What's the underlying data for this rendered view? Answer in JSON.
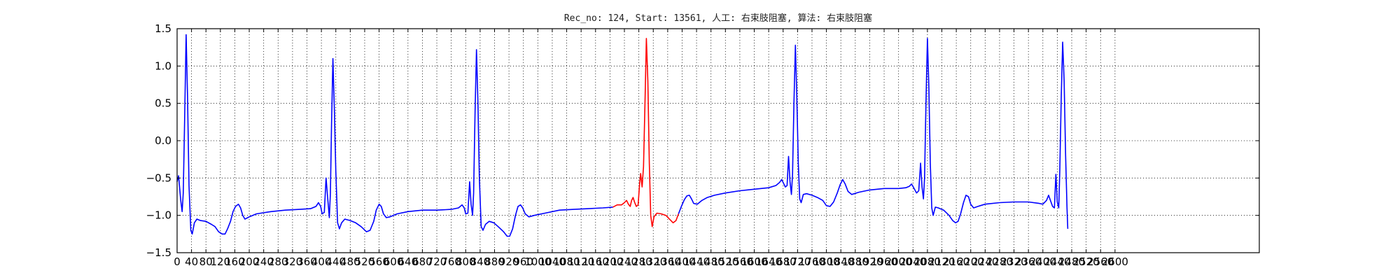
{
  "chart_data": {
    "type": "line",
    "title": "Rec_no: 124, Start: 13561, 人工: 右束肢阻塞, 算法: 右束肢阻塞",
    "xlabel": "",
    "ylabel": "",
    "xlim": [
      0,
      3000
    ],
    "ylim": [
      -1.5,
      1.5
    ],
    "grid": true,
    "y_ticks": [
      1.5,
      1.0,
      0.5,
      0.0,
      -0.5,
      -1.0,
      -1.5
    ],
    "y_tick_labels": [
      "1.5",
      "1.0",
      "0.5",
      "0.0",
      "−0.5",
      "−1.0",
      "−1.5"
    ],
    "x_ticks": [
      0,
      40,
      80,
      120,
      160,
      200,
      240,
      280,
      320,
      360,
      400,
      440,
      480,
      520,
      560,
      600,
      640,
      680,
      720,
      760,
      800,
      840,
      880,
      920,
      960,
      1000,
      1040,
      1080,
      1120,
      1160,
      1200,
      1240,
      1280,
      1320,
      1360,
      1400,
      1440,
      1480,
      1520,
      1560,
      1600,
      1640,
      1680,
      1720,
      1760,
      1800,
      1840,
      1880,
      1920,
      1960,
      2000,
      2040,
      2080,
      2120,
      2160,
      2200,
      2240,
      2280,
      2320,
      2360,
      2400,
      2440,
      2480,
      2520,
      2560,
      2600
    ],
    "x_tick_labels": [
      "0",
      "40",
      "80",
      "120",
      "160",
      "200",
      "240",
      "280",
      "320",
      "360",
      "400",
      "440",
      "480",
      "520",
      "560",
      "600",
      "640",
      "680",
      "720",
      "760",
      "800",
      "840",
      "880",
      "920",
      "960",
      "1000",
      "1040",
      "1080",
      "1120",
      "1160",
      "1200",
      "1240",
      "1280",
      "1320",
      "1360",
      "1400",
      "1440",
      "1480",
      "1520",
      "1560",
      "1600",
      "1640",
      "1680",
      "1720",
      "1760",
      "1800",
      "1840",
      "1880",
      "1920",
      "1960",
      "2000",
      "2040",
      "2080",
      "2120",
      "2160",
      "2200",
      "2240",
      "2280",
      "2320",
      "2360",
      "2400",
      "2440",
      "2480",
      "2520",
      "2560",
      "2600"
    ],
    "highlight_range": [
      1208,
      1390
    ],
    "series": [
      {
        "color": "#0000ff",
        "points": [
          [
            0,
            -0.55
          ],
          [
            4,
            -0.47
          ],
          [
            10,
            -0.8
          ],
          [
            14,
            -0.95
          ],
          [
            17,
            -0.7
          ],
          [
            21,
            0.3
          ],
          [
            25,
            1.42
          ],
          [
            29,
            0.6
          ],
          [
            33,
            -0.6
          ],
          [
            38,
            -1.2
          ],
          [
            42,
            -1.25
          ],
          [
            48,
            -1.1
          ],
          [
            55,
            -1.05
          ],
          [
            65,
            -1.07
          ],
          [
            80,
            -1.08
          ],
          [
            95,
            -1.12
          ],
          [
            105,
            -1.15
          ],
          [
            115,
            -1.22
          ],
          [
            125,
            -1.25
          ],
          [
            133,
            -1.25
          ],
          [
            140,
            -1.18
          ],
          [
            148,
            -1.08
          ],
          [
            155,
            -0.95
          ],
          [
            162,
            -0.88
          ],
          [
            170,
            -0.85
          ],
          [
            176,
            -0.9
          ],
          [
            182,
            -1.0
          ],
          [
            188,
            -1.05
          ],
          [
            200,
            -1.02
          ],
          [
            220,
            -0.98
          ],
          [
            260,
            -0.95
          ],
          [
            300,
            -0.93
          ],
          [
            340,
            -0.92
          ],
          [
            370,
            -0.91
          ],
          [
            385,
            -0.88
          ],
          [
            392,
            -0.83
          ],
          [
            398,
            -0.88
          ],
          [
            402,
            -0.98
          ],
          [
            408,
            -0.96
          ],
          [
            413,
            -0.5
          ],
          [
            418,
            -0.8
          ],
          [
            422,
            -1.03
          ],
          [
            425,
            -0.7
          ],
          [
            428,
            0.2
          ],
          [
            432,
            1.1
          ],
          [
            436,
            0.4
          ],
          [
            440,
            -0.4
          ],
          [
            445,
            -1.1
          ],
          [
            450,
            -1.18
          ],
          [
            456,
            -1.1
          ],
          [
            465,
            -1.05
          ],
          [
            480,
            -1.07
          ],
          [
            495,
            -1.1
          ],
          [
            510,
            -1.15
          ],
          [
            525,
            -1.22
          ],
          [
            535,
            -1.2
          ],
          [
            545,
            -1.08
          ],
          [
            552,
            -0.93
          ],
          [
            560,
            -0.85
          ],
          [
            566,
            -0.88
          ],
          [
            572,
            -0.98
          ],
          [
            580,
            -1.03
          ],
          [
            590,
            -1.02
          ],
          [
            610,
            -0.98
          ],
          [
            640,
            -0.95
          ],
          [
            680,
            -0.93
          ],
          [
            720,
            -0.93
          ],
          [
            760,
            -0.92
          ],
          [
            780,
            -0.9
          ],
          [
            790,
            -0.86
          ],
          [
            796,
            -0.9
          ],
          [
            800,
            -0.98
          ],
          [
            806,
            -0.97
          ],
          [
            811,
            -0.55
          ],
          [
            815,
            -0.85
          ],
          [
            819,
            -1.0
          ],
          [
            822,
            -0.7
          ],
          [
            826,
            0.4
          ],
          [
            830,
            1.22
          ],
          [
            834,
            0.5
          ],
          [
            838,
            -0.5
          ],
          [
            843,
            -1.15
          ],
          [
            848,
            -1.2
          ],
          [
            855,
            -1.12
          ],
          [
            865,
            -1.08
          ],
          [
            878,
            -1.1
          ],
          [
            890,
            -1.15
          ],
          [
            905,
            -1.22
          ],
          [
            915,
            -1.28
          ],
          [
            922,
            -1.28
          ],
          [
            930,
            -1.18
          ],
          [
            938,
            -1.0
          ],
          [
            945,
            -0.88
          ],
          [
            952,
            -0.86
          ],
          [
            958,
            -0.9
          ],
          [
            965,
            -0.98
          ],
          [
            975,
            -1.02
          ],
          [
            990,
            -1.0
          ],
          [
            1020,
            -0.97
          ],
          [
            1060,
            -0.93
          ],
          [
            1100,
            -0.92
          ],
          [
            1140,
            -0.91
          ],
          [
            1180,
            -0.9
          ],
          [
            1208,
            -0.89
          ]
        ]
      },
      {
        "color": "#ff0000",
        "points": [
          [
            1208,
            -0.89
          ],
          [
            1220,
            -0.86
          ],
          [
            1232,
            -0.86
          ],
          [
            1240,
            -0.83
          ],
          [
            1246,
            -0.8
          ],
          [
            1251,
            -0.85
          ],
          [
            1256,
            -0.88
          ],
          [
            1260,
            -0.8
          ],
          [
            1264,
            -0.76
          ],
          [
            1268,
            -0.82
          ],
          [
            1273,
            -0.88
          ],
          [
            1278,
            -0.86
          ],
          [
            1282,
            -0.58
          ],
          [
            1285,
            -0.44
          ],
          [
            1289,
            -0.62
          ],
          [
            1293,
            -0.35
          ],
          [
            1297,
            0.5
          ],
          [
            1301,
            1.37
          ],
          [
            1305,
            0.8
          ],
          [
            1309,
            -0.3
          ],
          [
            1313,
            -1.0
          ],
          [
            1317,
            -1.15
          ],
          [
            1322,
            -1.02
          ],
          [
            1330,
            -0.97
          ],
          [
            1342,
            -0.98
          ],
          [
            1355,
            -1.0
          ],
          [
            1365,
            -1.05
          ],
          [
            1375,
            -1.1
          ],
          [
            1383,
            -1.07
          ],
          [
            1390,
            -0.98
          ]
        ]
      },
      {
        "color": "#0000ff",
        "points": [
          [
            1390,
            -0.98
          ],
          [
            1398,
            -0.88
          ],
          [
            1406,
            -0.79
          ],
          [
            1413,
            -0.74
          ],
          [
            1420,
            -0.73
          ],
          [
            1426,
            -0.78
          ],
          [
            1432,
            -0.84
          ],
          [
            1442,
            -0.85
          ],
          [
            1455,
            -0.8
          ],
          [
            1470,
            -0.76
          ],
          [
            1490,
            -0.73
          ],
          [
            1520,
            -0.7
          ],
          [
            1560,
            -0.67
          ],
          [
            1600,
            -0.65
          ],
          [
            1640,
            -0.63
          ],
          [
            1660,
            -0.6
          ],
          [
            1670,
            -0.56
          ],
          [
            1676,
            -0.52
          ],
          [
            1680,
            -0.56
          ],
          [
            1686,
            -0.62
          ],
          [
            1691,
            -0.6
          ],
          [
            1695,
            -0.21
          ],
          [
            1699,
            -0.55
          ],
          [
            1703,
            -0.72
          ],
          [
            1706,
            -0.45
          ],
          [
            1710,
            0.5
          ],
          [
            1714,
            1.28
          ],
          [
            1718,
            0.6
          ],
          [
            1722,
            -0.3
          ],
          [
            1726,
            -0.78
          ],
          [
            1730,
            -0.83
          ],
          [
            1736,
            -0.72
          ],
          [
            1745,
            -0.71
          ],
          [
            1760,
            -0.73
          ],
          [
            1775,
            -0.76
          ],
          [
            1790,
            -0.8
          ],
          [
            1800,
            -0.87
          ],
          [
            1810,
            -0.88
          ],
          [
            1820,
            -0.82
          ],
          [
            1830,
            -0.7
          ],
          [
            1838,
            -0.59
          ],
          [
            1845,
            -0.52
          ],
          [
            1852,
            -0.58
          ],
          [
            1860,
            -0.68
          ],
          [
            1870,
            -0.72
          ],
          [
            1890,
            -0.69
          ],
          [
            1920,
            -0.66
          ],
          [
            1960,
            -0.64
          ],
          [
            2000,
            -0.64
          ],
          [
            2020,
            -0.63
          ],
          [
            2030,
            -0.61
          ],
          [
            2036,
            -0.58
          ],
          [
            2042,
            -0.63
          ],
          [
            2050,
            -0.7
          ],
          [
            2056,
            -0.67
          ],
          [
            2061,
            -0.3
          ],
          [
            2065,
            -0.62
          ],
          [
            2069,
            -0.78
          ],
          [
            2072,
            -0.5
          ],
          [
            2076,
            0.5
          ],
          [
            2080,
            1.37
          ],
          [
            2084,
            0.7
          ],
          [
            2088,
            -0.3
          ],
          [
            2092,
            -0.9
          ],
          [
            2096,
            -1.0
          ],
          [
            2102,
            -0.89
          ],
          [
            2110,
            -0.9
          ],
          [
            2125,
            -0.93
          ],
          [
            2140,
            -1.0
          ],
          [
            2150,
            -1.07
          ],
          [
            2158,
            -1.1
          ],
          [
            2165,
            -1.08
          ],
          [
            2172,
            -0.98
          ],
          [
            2180,
            -0.83
          ],
          [
            2187,
            -0.73
          ],
          [
            2194,
            -0.75
          ],
          [
            2200,
            -0.85
          ],
          [
            2208,
            -0.9
          ],
          [
            2220,
            -0.88
          ],
          [
            2240,
            -0.85
          ],
          [
            2280,
            -0.83
          ],
          [
            2320,
            -0.82
          ],
          [
            2360,
            -0.82
          ],
          [
            2390,
            -0.84
          ],
          [
            2400,
            -0.85
          ],
          [
            2410,
            -0.8
          ],
          [
            2416,
            -0.73
          ],
          [
            2421,
            -0.8
          ],
          [
            2427,
            -0.88
          ],
          [
            2432,
            -0.9
          ],
          [
            2436,
            -0.45
          ],
          [
            2440,
            -0.82
          ],
          [
            2444,
            -0.9
          ],
          [
            2447,
            -0.4
          ],
          [
            2451,
            0.6
          ],
          [
            2455,
            1.32
          ],
          [
            2459,
            0.8
          ],
          [
            2463,
            -0.2
          ],
          [
            2467,
            -0.9
          ],
          [
            2469,
            -1.18
          ]
        ]
      }
    ]
  }
}
